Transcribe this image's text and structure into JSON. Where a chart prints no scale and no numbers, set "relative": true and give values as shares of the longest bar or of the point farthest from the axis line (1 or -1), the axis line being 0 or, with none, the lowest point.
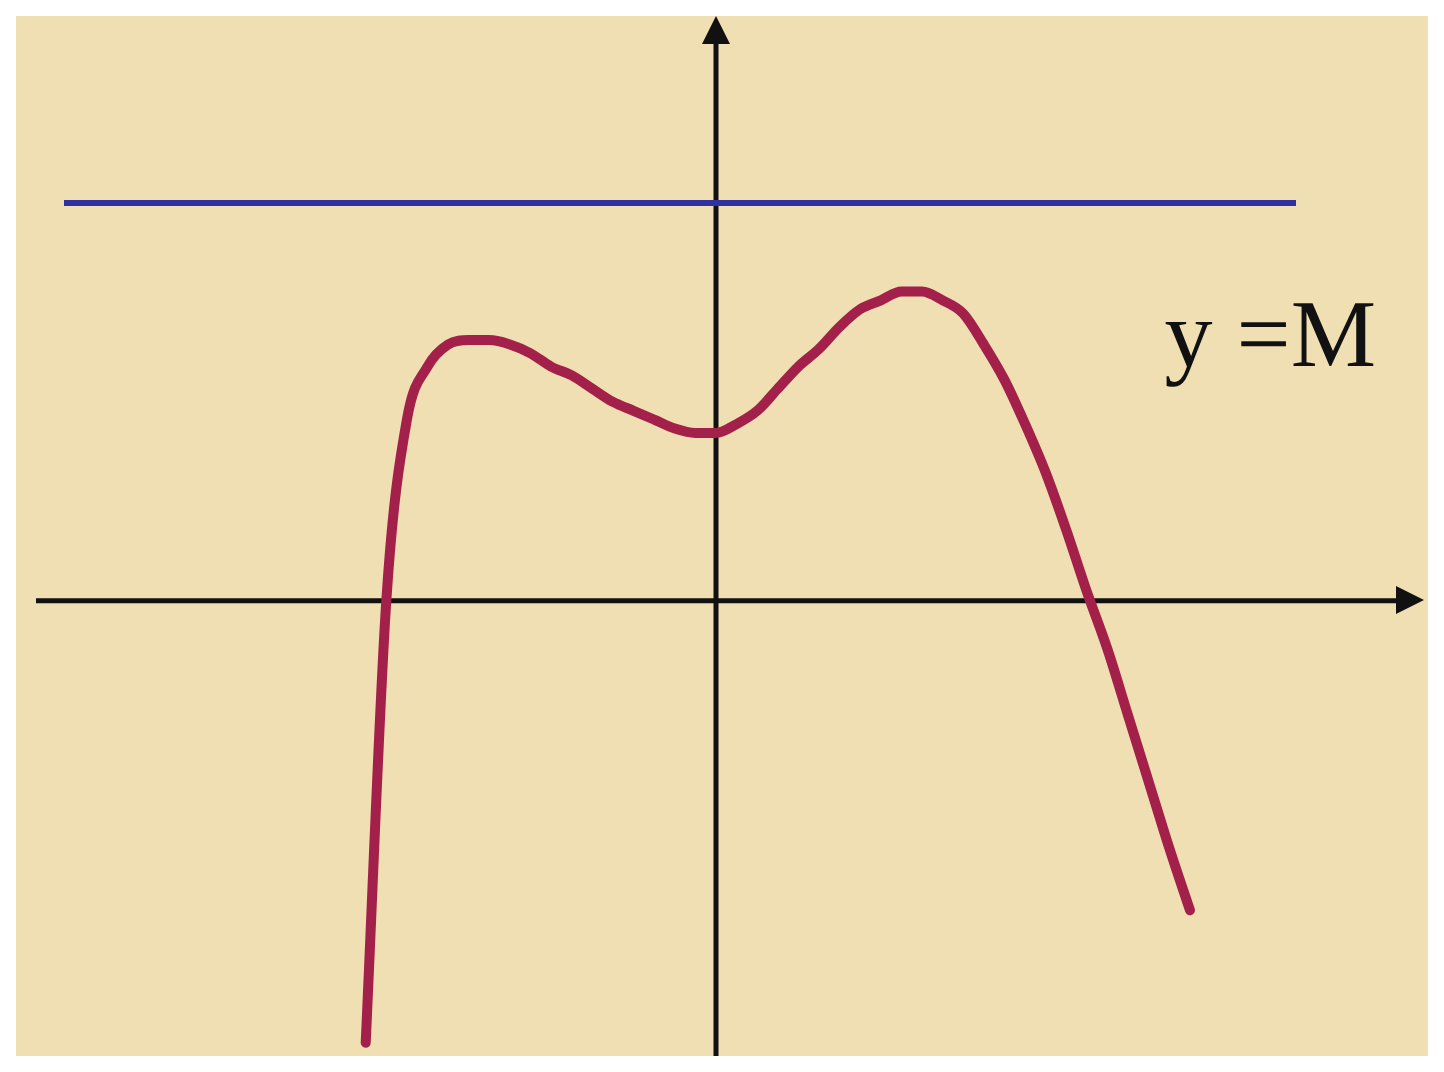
{
  "chart_data": {
    "type": "line",
    "relative": true,
    "marker": "none",
    "line_style": "solid",
    "categories": [
      null,
      null,
      null,
      null,
      null,
      null,
      null,
      null,
      null,
      null,
      null,
      null,
      null,
      null,
      null,
      null,
      null,
      null,
      null,
      null,
      null,
      null,
      null,
      null,
      null,
      null,
      null,
      null,
      null,
      null,
      null,
      null,
      null,
      null,
      null,
      null,
      null,
      null,
      null,
      null,
      null,
      null,
      null,
      null,
      null,
      null,
      null,
      null,
      null,
      null,
      null,
      null,
      null,
      null,
      null,
      null,
      null,
      null,
      null,
      null,
      null,
      null,
      null,
      null,
      null,
      null,
      null
    ],
    "series": [
      {
        "color": "#a3204a",
        "values": [
          null,
          null,
          null,
          null,
          null,
          null,
          null,
          null,
          null,
          null,
          null,
          null,
          null,
          null,
          null,
          null,
          -1,
          0,
          0.41,
          0.53,
          0.58,
          0.59,
          0.59,
          0.58,
          0.56,
          0.53,
          0.51,
          0.48,
          0.45,
          0.43,
          0.41,
          0.39,
          0.38,
          0.38,
          0.4,
          0.43,
          0.48,
          0.53,
          0.57,
          0.62,
          0.66,
          0.68,
          0.7,
          0.7,
          0.68,
          0.65,
          0.58,
          0.5,
          0.4,
          0.29,
          0.16,
          0.02,
          -0.11,
          -0.26,
          -0.41,
          -0.56,
          -0.7,
          null,
          null,
          null,
          null,
          null,
          null,
          null,
          null,
          null,
          null
        ]
      }
    ],
    "ref_lines": [
      {
        "axis": "y",
        "value": 0.9,
        "label": "y =M",
        "color": "#3030a0"
      }
    ]
  }
}
